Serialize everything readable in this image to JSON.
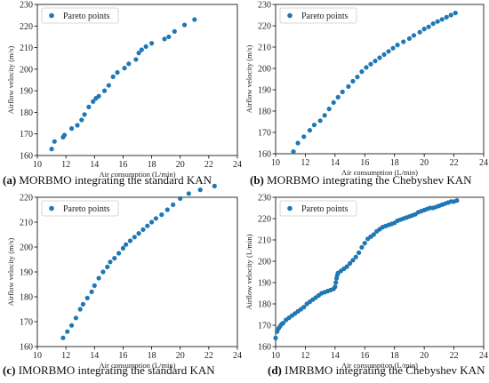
{
  "figure": {
    "captions": [
      {
        "letter": "(a)",
        "text": " MORBMO integrating the standard KAN"
      },
      {
        "letter": "(b)",
        "text": " MORBMO integrating the Chebyshev KAN"
      },
      {
        "letter": "(c)",
        "text": " IMORBMO integrating the standard KAN"
      },
      {
        "letter": "(d)",
        "text": " IMRBMO integrating the Chebyshev KAN"
      }
    ]
  },
  "colors": {
    "marker": "#1f77b4",
    "axis": "#000000",
    "text": "#111111"
  },
  "chart_data": [
    {
      "type": "scatter",
      "xlabel": "Air consumption (L/min)",
      "ylabel": "Airflow velocity (m/s)",
      "xlim": [
        10,
        24
      ],
      "ylim": [
        160,
        230
      ],
      "xticks": [
        10,
        12,
        14,
        16,
        18,
        20,
        22,
        24
      ],
      "yticks": [
        160,
        170,
        180,
        190,
        200,
        210,
        220,
        230
      ],
      "legend_position": "top-left",
      "series": [
        {
          "name": "Pareto points",
          "x": [
            11.0,
            11.2,
            11.8,
            11.9,
            12.4,
            12.8,
            13.1,
            13.3,
            13.6,
            13.9,
            14.1,
            14.3,
            14.7,
            15.0,
            15.3,
            15.6,
            16.1,
            16.4,
            16.9,
            17.1,
            17.3,
            17.6,
            18.0,
            18.9,
            19.2,
            19.6,
            20.3,
            21.0
          ],
          "y": [
            163.0,
            166.5,
            168.5,
            169.5,
            172.5,
            174.0,
            176.5,
            179.0,
            182.5,
            185.0,
            186.5,
            187.5,
            190.0,
            192.5,
            196.5,
            198.5,
            200.5,
            202.5,
            204.5,
            207.5,
            209.0,
            210.5,
            212.0,
            214.0,
            215.0,
            217.5,
            220.5,
            223.0
          ]
        }
      ]
    },
    {
      "type": "scatter",
      "xlabel": "Air consumption (L/min)",
      "ylabel": "Airflow velocity (m/s)",
      "xlim": [
        10,
        24
      ],
      "ylim": [
        160,
        230
      ],
      "xticks": [
        10,
        12,
        14,
        16,
        18,
        20,
        22,
        24
      ],
      "yticks": [
        160,
        170,
        180,
        190,
        200,
        210,
        220,
        230
      ],
      "legend_position": "top-left",
      "series": [
        {
          "name": "Pareto points",
          "x": [
            11.2,
            11.5,
            11.9,
            12.3,
            12.6,
            13.0,
            13.3,
            13.6,
            13.9,
            14.2,
            14.5,
            14.9,
            15.2,
            15.5,
            15.8,
            16.1,
            16.4,
            16.7,
            17.0,
            17.3,
            17.6,
            17.9,
            18.2,
            18.6,
            19.0,
            19.3,
            19.7,
            20.0,
            20.3,
            20.6,
            20.9,
            21.2,
            21.5,
            21.8,
            22.1
          ],
          "y": [
            161.0,
            165.0,
            168.0,
            171.0,
            173.5,
            175.5,
            178.0,
            181.0,
            184.0,
            186.5,
            189.0,
            191.5,
            194.0,
            196.0,
            198.5,
            200.5,
            202.0,
            203.5,
            205.0,
            206.5,
            208.0,
            209.5,
            211.0,
            212.5,
            214.0,
            215.5,
            217.0,
            218.5,
            219.5,
            221.0,
            222.0,
            223.0,
            224.0,
            225.0,
            226.0
          ]
        }
      ]
    },
    {
      "type": "scatter",
      "xlabel": "Air consumption (L/min)",
      "ylabel": "Airflow velocity (m/s)",
      "xlim": [
        10,
        24
      ],
      "ylim": [
        160,
        220
      ],
      "xticks": [
        10,
        12,
        14,
        16,
        18,
        20,
        22,
        24
      ],
      "yticks": [
        160,
        170,
        180,
        190,
        200,
        210,
        220
      ],
      "legend_position": "top-left",
      "series": [
        {
          "name": "Pareto points",
          "x": [
            11.8,
            12.1,
            12.4,
            12.7,
            13.0,
            13.2,
            13.5,
            13.8,
            14.0,
            14.3,
            14.6,
            14.9,
            15.1,
            15.4,
            15.7,
            16.0,
            16.2,
            16.5,
            16.8,
            17.1,
            17.4,
            17.7,
            18.0,
            18.3,
            18.7,
            19.1,
            19.5,
            20.0,
            20.6,
            21.4,
            22.4
          ],
          "y": [
            163.5,
            166.0,
            168.5,
            171.5,
            175.0,
            177.0,
            179.5,
            182.0,
            184.5,
            187.5,
            190.0,
            192.0,
            194.0,
            195.5,
            197.5,
            199.5,
            201.0,
            202.5,
            204.0,
            205.5,
            207.0,
            208.5,
            210.0,
            211.5,
            213.0,
            215.0,
            217.0,
            219.5,
            221.5,
            223.0,
            224.5
          ]
        }
      ]
    },
    {
      "type": "scatter",
      "xlabel": "Air consumption (L/min)",
      "ylabel": "Airflow velocity (L/min)",
      "xlim": [
        10,
        24
      ],
      "ylim": [
        160,
        230
      ],
      "xticks": [
        10,
        12,
        14,
        16,
        18,
        20,
        22,
        24
      ],
      "yticks": [
        160,
        170,
        180,
        190,
        200,
        210,
        220,
        230
      ],
      "legend_position": "top-left",
      "series": [
        {
          "name": "Pareto points",
          "x": [
            10.0,
            10.1,
            10.2,
            10.3,
            10.4,
            10.5,
            10.7,
            10.9,
            11.1,
            11.3,
            11.5,
            11.7,
            11.9,
            12.1,
            12.3,
            12.5,
            12.7,
            12.9,
            13.1,
            13.3,
            13.5,
            13.7,
            13.9,
            14.0,
            14.05,
            14.1,
            14.15,
            14.2,
            14.4,
            14.6,
            14.8,
            15.0,
            15.2,
            15.4,
            15.6,
            15.8,
            16.0,
            16.2,
            16.4,
            16.6,
            16.8,
            17.0,
            17.2,
            17.4,
            17.6,
            17.8,
            18.0,
            18.2,
            18.4,
            18.6,
            18.8,
            19.0,
            19.2,
            19.4,
            19.6,
            19.8,
            20.0,
            20.2,
            20.4,
            20.6,
            20.8,
            21.0,
            21.2,
            21.4,
            21.6,
            21.8,
            22.0,
            22.2
          ],
          "y": [
            164.0,
            167.0,
            168.5,
            169.5,
            170.5,
            171.0,
            172.5,
            173.5,
            174.5,
            175.5,
            176.5,
            177.5,
            178.5,
            180.0,
            181.0,
            182.0,
            183.0,
            184.0,
            185.0,
            185.5,
            186.0,
            186.5,
            187.0,
            188.0,
            190.0,
            192.0,
            193.5,
            194.5,
            195.5,
            196.5,
            197.5,
            199.0,
            200.5,
            202.0,
            204.0,
            206.5,
            208.5,
            210.5,
            211.5,
            212.5,
            214.0,
            215.0,
            216.0,
            216.5,
            217.0,
            217.5,
            218.0,
            219.0,
            219.5,
            220.0,
            220.5,
            221.0,
            221.5,
            222.0,
            223.0,
            223.5,
            224.0,
            224.5,
            225.0,
            225.0,
            225.5,
            226.0,
            226.5,
            227.0,
            227.5,
            228.0,
            228.0,
            228.5
          ]
        }
      ]
    }
  ]
}
